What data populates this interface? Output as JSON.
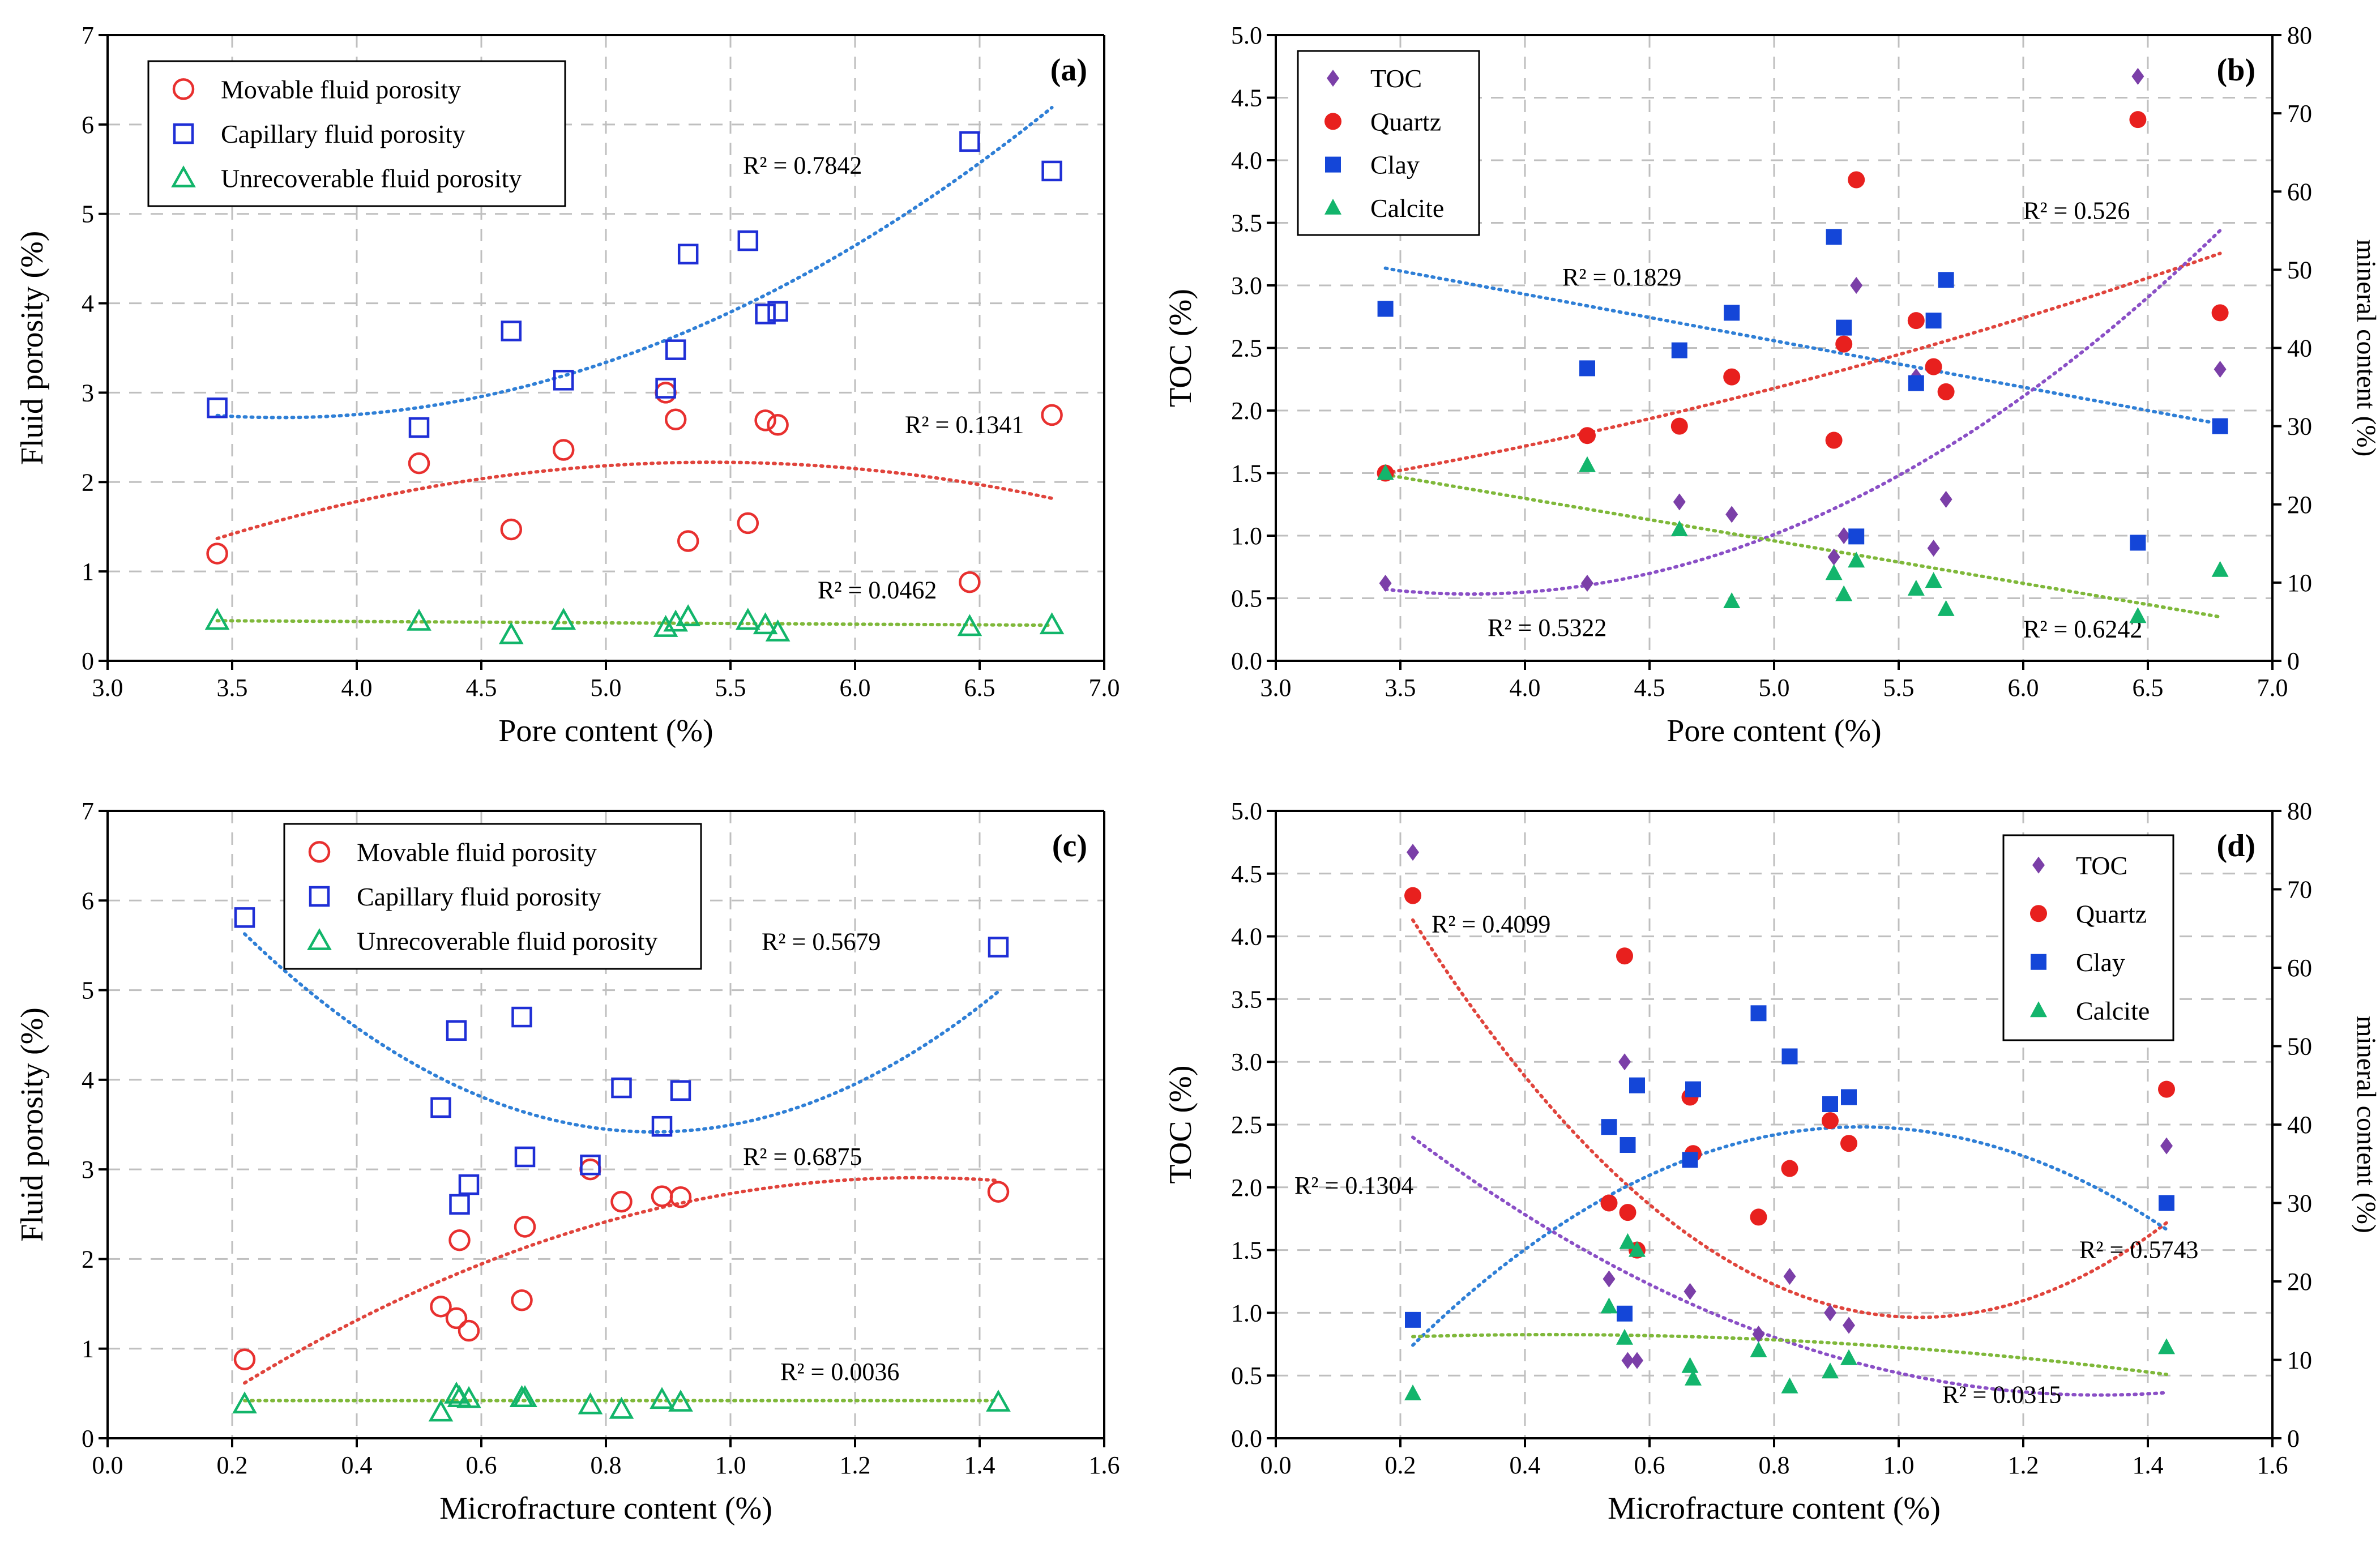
{
  "colors": {
    "movable": "#e8302f",
    "capillary": "#1f2fd6",
    "unrecoverable": "#12b56a",
    "toc": "#7b3fa8",
    "quartz": "#e8201e",
    "clay": "#1446d8",
    "calcite": "#13b56c",
    "trend_blue": "#2f7fd6",
    "trend_red": "#e0443c",
    "trend_green": "#7fb83a",
    "trend_purple": "#8a4fc6"
  },
  "chart_data": [
    {
      "panel": "(a)",
      "type": "scatter",
      "xlabel": "Pore content (%)",
      "ylabel": "Fluid porosity (%)",
      "xlim": [
        3.0,
        7.0
      ],
      "ylim": [
        0,
        7
      ],
      "xticks": [
        "3.0",
        "3.5",
        "4.0",
        "4.5",
        "5.0",
        "5.5",
        "6.0",
        "6.5",
        "7.0"
      ],
      "yticks": [
        "0",
        "1",
        "2",
        "3",
        "4",
        "5",
        "6",
        "7"
      ],
      "legend_position": "top-left",
      "series": [
        {
          "name": "Movable fluid porosity",
          "marker": "open-circle",
          "color_key": "movable",
          "x": [
            3.44,
            4.25,
            4.62,
            4.83,
            5.24,
            5.28,
            5.33,
            5.57,
            5.64,
            5.69,
            6.46,
            6.79
          ],
          "y": [
            1.2,
            2.21,
            1.47,
            2.36,
            3.0,
            2.7,
            1.34,
            1.54,
            2.69,
            2.64,
            0.88,
            2.75
          ]
        },
        {
          "name": "Capillary fluid porosity",
          "marker": "open-square",
          "color_key": "capillary",
          "x": [
            3.44,
            4.25,
            4.62,
            4.83,
            5.24,
            5.28,
            5.33,
            5.57,
            5.64,
            5.69,
            6.46,
            6.79
          ],
          "y": [
            2.83,
            2.61,
            3.69,
            3.14,
            3.05,
            3.48,
            4.55,
            4.7,
            3.88,
            3.91,
            5.81,
            5.48
          ]
        },
        {
          "name": "Unrecoverable fluid porosity",
          "marker": "open-triangle",
          "color_key": "unrecoverable",
          "x": [
            3.44,
            4.25,
            4.62,
            4.83,
            5.24,
            5.28,
            5.33,
            5.57,
            5.64,
            5.69,
            6.46,
            6.79
          ],
          "y": [
            0.45,
            0.44,
            0.29,
            0.45,
            0.37,
            0.43,
            0.49,
            0.45,
            0.4,
            0.32,
            0.38,
            0.4
          ]
        }
      ],
      "trendlines": [
        {
          "color_key": "trend_blue",
          "x": [
            3.44,
            6.79
          ],
          "coeffs": [
            0.3617,
            -2.672,
            7.656
          ],
          "r2_label": "R² = 0.7842",
          "r2_at": [
            5.55,
            5.45
          ]
        },
        {
          "color_key": "trend_red",
          "x": [
            3.44,
            6.79
          ],
          "coeffs": [
            -0.2165,
            2.349,
            -4.15
          ],
          "r2_label": "R² = 0.1341",
          "r2_at": [
            6.2,
            2.55
          ]
        },
        {
          "color_key": "trend_green",
          "x": [
            3.44,
            6.79
          ],
          "coeffs": [
            0,
            -0.015,
            0.5
          ],
          "r2_label": "R² = 0.0462",
          "r2_at": [
            5.85,
            0.7
          ]
        }
      ]
    },
    {
      "panel": "(b)",
      "type": "scatter",
      "xlabel": "Pore content (%)",
      "ylabel": "TOC (%)",
      "y2label": "mineral content (%)",
      "xlim": [
        3.0,
        7.0
      ],
      "ylim": [
        0,
        5.0
      ],
      "y2lim": [
        0,
        80
      ],
      "xticks": [
        "3.0",
        "3.5",
        "4.0",
        "4.5",
        "5.0",
        "5.5",
        "6.0",
        "6.5",
        "7.0"
      ],
      "yticks": [
        "0.0",
        "0.5",
        "1.0",
        "1.5",
        "2.0",
        "2.5",
        "3.0",
        "3.5",
        "4.0",
        "4.5",
        "5.0"
      ],
      "y2ticks": [
        "0",
        "10",
        "20",
        "30",
        "40",
        "50",
        "60",
        "70",
        "80"
      ],
      "legend_position": "top-left",
      "series": [
        {
          "name": "TOC",
          "marker": "diamond",
          "color_key": "toc",
          "axis": "left",
          "x": [
            3.44,
            4.25,
            4.62,
            4.83,
            5.24,
            5.28,
            5.33,
            5.57,
            5.64,
            5.69,
            6.46,
            6.79
          ],
          "y": [
            0.62,
            0.62,
            1.27,
            1.17,
            0.83,
            1.0,
            3.0,
            2.27,
            0.9,
            1.29,
            4.67,
            2.33
          ]
        },
        {
          "name": "Quartz",
          "marker": "circle",
          "color_key": "quartz",
          "axis": "right",
          "x": [
            3.44,
            4.25,
            4.62,
            4.83,
            5.24,
            5.28,
            5.33,
            5.57,
            5.64,
            5.69,
            6.46,
            6.79
          ],
          "y": [
            24,
            28.8,
            30,
            36.3,
            28.2,
            40.5,
            61.5,
            43.5,
            37.6,
            34.4,
            69.2,
            44.5
          ]
        },
        {
          "name": "Clay",
          "marker": "square",
          "color_key": "clay",
          "axis": "right",
          "x": [
            3.44,
            4.25,
            4.62,
            4.83,
            5.24,
            5.28,
            5.33,
            5.57,
            5.64,
            5.69,
            6.46,
            6.79
          ],
          "y": [
            45,
            37.4,
            39.7,
            44.5,
            54.2,
            42.6,
            15.9,
            35.5,
            43.5,
            48.7,
            15.1,
            30
          ]
        },
        {
          "name": "Calcite",
          "marker": "triangle",
          "color_key": "calcite",
          "axis": "right",
          "x": [
            3.44,
            4.25,
            4.62,
            4.83,
            5.24,
            5.28,
            5.33,
            5.57,
            5.64,
            5.69,
            6.46,
            6.79
          ],
          "y": [
            24,
            25,
            16.8,
            7.6,
            11.2,
            8.5,
            12.8,
            9.2,
            10.2,
            6.6,
            5.7,
            11.6
          ]
        }
      ],
      "trendlines": [
        {
          "color_key": "trend_blue",
          "axis": "right",
          "x": [
            3.44,
            6.79
          ],
          "coeffs": [
            0,
            -5.945,
            70.65
          ],
          "r2_label": "R² = 0.1829",
          "r2_at": [
            4.15,
            48
          ]
        },
        {
          "color_key": "trend_red",
          "axis": "right",
          "x": [
            3.44,
            6.79
          ],
          "coeffs": [
            0.8,
            0.2,
            13.85
          ],
          "r2_label": "R² = 0.526",
          "r2_at": [
            6.0,
            56.5
          ]
        },
        {
          "color_key": "trend_purple",
          "axis": "left",
          "x": [
            3.44,
            6.79
          ],
          "coeffs": [
            0.3214,
            -2.432,
            5.134
          ],
          "r2_label": "R² = 0.5322",
          "r2_at": [
            3.85,
            0.2
          ]
        },
        {
          "color_key": "trend_green",
          "axis": "right",
          "x": [
            3.44,
            6.79
          ],
          "coeffs": [
            0,
            -5.427,
            42.47
          ],
          "r2_label": "R² = 0.6242",
          "r2_at": [
            6.0,
            3
          ]
        }
      ]
    },
    {
      "panel": "(c)",
      "type": "scatter",
      "xlabel": "Microfracture content (%)",
      "ylabel": "Fluid porosity (%)",
      "xlim": [
        0.0,
        1.6
      ],
      "ylim": [
        0,
        7
      ],
      "xticks": [
        "0.0",
        "0.2",
        "0.4",
        "0.6",
        "0.8",
        "1.0",
        "1.2",
        "1.4",
        "1.6"
      ],
      "yticks": [
        "0",
        "1",
        "2",
        "3",
        "4",
        "5",
        "6",
        "7"
      ],
      "legend_position": "top-center",
      "series": [
        {
          "name": "Movable fluid porosity",
          "marker": "open-circle",
          "color_key": "movable",
          "x": [
            0.22,
            0.535,
            0.56,
            0.565,
            0.58,
            0.665,
            0.67,
            0.775,
            0.825,
            0.89,
            0.92,
            1.43
          ],
          "y": [
            0.88,
            1.47,
            1.34,
            2.21,
            1.2,
            1.54,
            2.36,
            3.0,
            2.64,
            2.7,
            2.69,
            2.75
          ]
        },
        {
          "name": "Capillary fluid porosity",
          "marker": "open-square",
          "color_key": "capillary",
          "x": [
            0.22,
            0.535,
            0.56,
            0.565,
            0.58,
            0.665,
            0.67,
            0.775,
            0.825,
            0.89,
            0.92,
            1.43
          ],
          "y": [
            5.81,
            3.69,
            4.55,
            2.61,
            2.83,
            4.7,
            3.14,
            3.05,
            3.91,
            3.48,
            3.88,
            5.48
          ]
        },
        {
          "name": "Unrecoverable fluid porosity",
          "marker": "open-triangle",
          "color_key": "unrecoverable",
          "x": [
            0.22,
            0.535,
            0.56,
            0.565,
            0.58,
            0.665,
            0.67,
            0.775,
            0.825,
            0.89,
            0.92,
            1.43
          ],
          "y": [
            0.38,
            0.29,
            0.49,
            0.45,
            0.44,
            0.45,
            0.45,
            0.37,
            0.32,
            0.43,
            0.4,
            0.4
          ]
        }
      ],
      "trendlines": [
        {
          "color_key": "trend_blue",
          "x": [
            0.22,
            1.43
          ],
          "coeffs": [
            5.12,
            -8.98,
            7.355
          ],
          "r2_label": "R² = 0.5679",
          "r2_at": [
            1.05,
            5.45
          ]
        },
        {
          "color_key": "trend_red",
          "x": [
            0.22,
            1.43
          ],
          "coeffs": [
            -1.96,
            5.1,
            -0.41
          ],
          "r2_label": "R² = 0.6875",
          "r2_at": [
            1.02,
            3.05
          ]
        },
        {
          "color_key": "trend_green",
          "x": [
            0.22,
            1.43
          ],
          "coeffs": [
            0,
            0,
            0.42
          ],
          "r2_label": "R² = 0.0036",
          "r2_at": [
            1.08,
            0.65
          ]
        }
      ]
    },
    {
      "panel": "(d)",
      "type": "scatter",
      "xlabel": "Microfracture content (%)",
      "ylabel": "TOC (%)",
      "y2label": "mineral content (%)",
      "xlim": [
        0.0,
        1.6
      ],
      "ylim": [
        0,
        5.0
      ],
      "y2lim": [
        0,
        80
      ],
      "xticks": [
        "0.0",
        "0.2",
        "0.4",
        "0.6",
        "0.8",
        "1.0",
        "1.2",
        "1.4",
        "1.6"
      ],
      "yticks": [
        "0.0",
        "0.5",
        "1.0",
        "1.5",
        "2.0",
        "2.5",
        "3.0",
        "3.5",
        "4.0",
        "4.5",
        "5.0"
      ],
      "y2ticks": [
        "0",
        "10",
        "20",
        "30",
        "40",
        "50",
        "60",
        "70",
        "80"
      ],
      "legend_position": "top-right",
      "series": [
        {
          "name": "TOC",
          "marker": "diamond",
          "color_key": "toc",
          "axis": "left",
          "x": [
            0.22,
            0.535,
            0.56,
            0.565,
            0.58,
            0.665,
            0.67,
            0.775,
            0.825,
            0.89,
            0.92,
            1.43
          ],
          "y": [
            4.67,
            1.27,
            3.0,
            0.62,
            0.62,
            1.17,
            2.27,
            0.83,
            1.29,
            1.0,
            0.9,
            2.33
          ]
        },
        {
          "name": "Quartz",
          "marker": "circle",
          "color_key": "quartz",
          "axis": "right",
          "x": [
            0.22,
            0.535,
            0.56,
            0.565,
            0.58,
            0.665,
            0.67,
            0.775,
            0.825,
            0.89,
            0.92,
            1.43
          ],
          "y": [
            69.2,
            30,
            61.5,
            28.8,
            24,
            43.5,
            36.3,
            28.2,
            34.4,
            40.5,
            37.6,
            44.5
          ]
        },
        {
          "name": "Clay",
          "marker": "square",
          "color_key": "clay",
          "axis": "right",
          "x": [
            0.22,
            0.535,
            0.56,
            0.565,
            0.58,
            0.665,
            0.67,
            0.775,
            0.825,
            0.89,
            0.92,
            1.43
          ],
          "y": [
            15.1,
            39.7,
            15.9,
            37.4,
            45,
            35.5,
            44.5,
            54.2,
            48.7,
            42.6,
            43.5,
            30
          ]
        },
        {
          "name": "Calcite",
          "marker": "triangle",
          "color_key": "calcite",
          "axis": "right",
          "x": [
            0.22,
            0.535,
            0.56,
            0.565,
            0.58,
            0.665,
            0.67,
            0.775,
            0.825,
            0.89,
            0.92,
            1.43
          ],
          "y": [
            5.7,
            16.8,
            12.8,
            25,
            24,
            9.2,
            7.6,
            11.2,
            6.6,
            8.5,
            10.2,
            11.6
          ]
        }
      ],
      "trendlines": [
        {
          "color_key": "trend_red",
          "axis": "right",
          "x": [
            0.22,
            1.43
          ],
          "coeffs": [
            76.6,
            -158.3,
            97.2
          ],
          "r2_label": "R² = 0.4099",
          "r2_at": [
            0.25,
            64.5
          ]
        },
        {
          "color_key": "trend_blue",
          "axis": "right",
          "x": [
            0.22,
            1.43
          ],
          "coeffs": [
            -54.0,
            101.3,
            -7.8
          ],
          "r2_label": "R² = 0.5743",
          "r2_at": [
            1.29,
            23
          ]
        },
        {
          "color_key": "trend_purple",
          "axis": "left",
          "x": [
            0.22,
            1.43
          ],
          "coeffs": [
            1.69,
            -4.47,
            3.3
          ],
          "r2_label": "R² = 0.1304",
          "r2_at": [
            0.03,
            1.95
          ]
        },
        {
          "color_key": "trend_green",
          "axis": "right",
          "x": [
            0.22,
            1.43
          ],
          "coeffs": [
            -5.2,
            4.6,
            12.2
          ],
          "r2_label": "R² = 0.0315",
          "r2_at": [
            1.07,
            4.5
          ]
        }
      ]
    }
  ]
}
